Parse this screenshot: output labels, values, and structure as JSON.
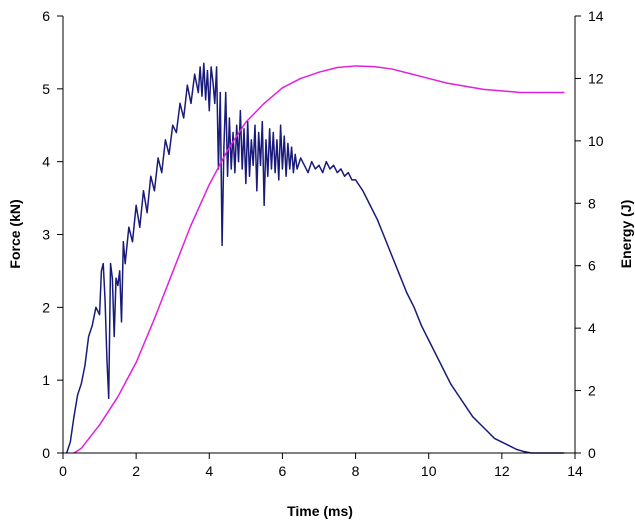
{
  "chart_data": {
    "type": "line",
    "title": "",
    "xlabel": "Time (ms)",
    "ylabel_left": "Force (kN)",
    "ylabel_right": "Energy (J)",
    "xlim": [
      0,
      14
    ],
    "ylim_left": [
      0,
      6
    ],
    "ylim_right": [
      0,
      14
    ],
    "x_ticks": [
      "0",
      "2",
      "4",
      "6",
      "8",
      "10",
      "12",
      "14"
    ],
    "y_left_ticks": [
      "0",
      "1",
      "2",
      "3",
      "4",
      "5",
      "6"
    ],
    "y_right_ticks": [
      "0",
      "2",
      "4",
      "6",
      "8",
      "10",
      "12",
      "14"
    ],
    "grid": false,
    "legend": "none",
    "series": [
      {
        "axis": "left",
        "color": "#1a1a7a",
        "x": [
          0.1,
          0.2,
          0.3,
          0.4,
          0.5,
          0.6,
          0.7,
          0.8,
          0.9,
          1.0,
          1.05,
          1.1,
          1.15,
          1.2,
          1.25,
          1.3,
          1.35,
          1.4,
          1.45,
          1.5,
          1.55,
          1.6,
          1.65,
          1.7,
          1.8,
          1.9,
          2.0,
          2.1,
          2.2,
          2.3,
          2.4,
          2.5,
          2.6,
          2.7,
          2.8,
          2.9,
          3.0,
          3.1,
          3.2,
          3.3,
          3.4,
          3.5,
          3.6,
          3.7,
          3.75,
          3.8,
          3.85,
          3.9,
          3.95,
          4.0,
          4.05,
          4.1,
          4.15,
          4.2,
          4.25,
          4.3,
          4.35,
          4.4,
          4.45,
          4.5,
          4.55,
          4.6,
          4.65,
          4.7,
          4.75,
          4.8,
          4.85,
          4.9,
          4.95,
          5.0,
          5.05,
          5.1,
          5.15,
          5.2,
          5.25,
          5.3,
          5.35,
          5.4,
          5.45,
          5.5,
          5.55,
          5.6,
          5.65,
          5.7,
          5.75,
          5.8,
          5.85,
          5.9,
          5.95,
          6.0,
          6.05,
          6.1,
          6.15,
          6.2,
          6.25,
          6.3,
          6.35,
          6.4,
          6.5,
          6.6,
          6.7,
          6.8,
          6.9,
          7.0,
          7.1,
          7.2,
          7.3,
          7.4,
          7.5,
          7.6,
          7.7,
          7.8,
          7.9,
          8.0,
          8.2,
          8.4,
          8.6,
          8.8,
          9.0,
          9.2,
          9.4,
          9.6,
          9.8,
          10.0,
          10.2,
          10.4,
          10.6,
          10.8,
          11.0,
          11.2,
          11.4,
          11.6,
          11.8,
          12.0,
          12.2,
          12.4,
          12.6,
          12.8,
          13.0,
          13.2,
          13.4,
          13.6,
          13.7
        ],
        "y": [
          0.0,
          0.15,
          0.5,
          0.8,
          0.95,
          1.2,
          1.6,
          1.75,
          2.0,
          1.9,
          2.5,
          2.6,
          2.1,
          1.3,
          0.75,
          2.6,
          2.4,
          1.6,
          2.4,
          2.3,
          2.5,
          1.8,
          2.9,
          2.6,
          3.1,
          2.9,
          3.4,
          3.1,
          3.6,
          3.3,
          3.8,
          3.6,
          4.05,
          3.85,
          4.3,
          4.1,
          4.5,
          4.4,
          4.8,
          4.6,
          5.05,
          4.8,
          5.2,
          4.95,
          5.3,
          4.9,
          5.35,
          4.85,
          5.25,
          4.7,
          5.3,
          5.1,
          4.8,
          5.3,
          3.9,
          4.95,
          2.85,
          4.2,
          4.95,
          3.8,
          4.6,
          3.9,
          4.4,
          3.85,
          4.5,
          4.0,
          4.7,
          3.9,
          4.45,
          3.7,
          4.55,
          3.8,
          4.3,
          3.95,
          4.5,
          3.6,
          4.4,
          3.95,
          4.55,
          3.4,
          4.3,
          3.8,
          4.45,
          3.9,
          4.4,
          3.85,
          4.3,
          3.75,
          4.5,
          3.9,
          4.35,
          3.8,
          4.25,
          3.9,
          4.2,
          3.85,
          4.1,
          3.9,
          4.05,
          3.95,
          3.85,
          4.0,
          3.9,
          3.95,
          3.85,
          4.0,
          3.9,
          3.95,
          3.85,
          3.9,
          3.8,
          3.85,
          3.75,
          3.75,
          3.6,
          3.4,
          3.2,
          2.95,
          2.7,
          2.45,
          2.2,
          2.0,
          1.75,
          1.55,
          1.35,
          1.15,
          0.95,
          0.8,
          0.65,
          0.5,
          0.4,
          0.3,
          0.2,
          0.15,
          0.1,
          0.05,
          0.02,
          0.0,
          0.0,
          0.0,
          0.0,
          0.0,
          0.0
        ]
      },
      {
        "axis": "right",
        "color": "#e020e0",
        "x": [
          0.3,
          0.5,
          1.0,
          1.5,
          2.0,
          2.5,
          3.0,
          3.5,
          4.0,
          4.5,
          5.0,
          5.5,
          6.0,
          6.5,
          7.0,
          7.5,
          8.0,
          8.5,
          9.0,
          9.5,
          10.0,
          10.5,
          11.0,
          11.5,
          12.0,
          12.5,
          13.0,
          13.5,
          13.7
        ],
        "y": [
          0.0,
          0.15,
          0.9,
          1.8,
          2.9,
          4.3,
          5.8,
          7.3,
          8.6,
          9.7,
          10.6,
          11.2,
          11.7,
          12.0,
          12.2,
          12.35,
          12.4,
          12.38,
          12.3,
          12.15,
          12.0,
          11.85,
          11.75,
          11.65,
          11.6,
          11.55,
          11.55,
          11.55,
          11.55
        ]
      }
    ]
  }
}
